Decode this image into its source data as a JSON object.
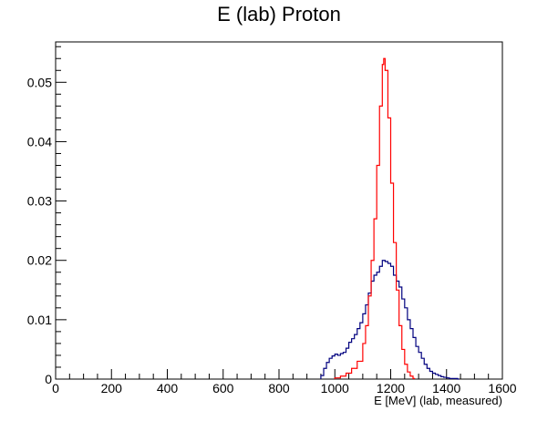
{
  "chart_data": {
    "type": "histogram",
    "title": "E (lab) Proton",
    "xlabel": "E [MeV] (lab, measured)",
    "ylabel": "",
    "xlim": [
      0,
      1600
    ],
    "ylim": [
      0,
      0.0568
    ],
    "xticks": [
      0,
      200,
      400,
      600,
      800,
      1000,
      1200,
      1400,
      1600
    ],
    "yticks": [
      0,
      0.01,
      0.02,
      0.03,
      0.04,
      0.05
    ],
    "ytick_labels": [
      "0",
      "0.01",
      "0.02",
      "0.03",
      "0.04",
      "0.05"
    ],
    "grid": false,
    "legend": "none",
    "series": [
      {
        "color": "#00007f",
        "bin_width": 5,
        "bins": [
          [
            950,
            0.0006
          ],
          [
            960,
            0.0018
          ],
          [
            970,
            0.0028
          ],
          [
            980,
            0.0035
          ],
          [
            990,
            0.0039
          ],
          [
            1000,
            0.0042
          ],
          [
            1010,
            0.004
          ],
          [
            1020,
            0.0043
          ],
          [
            1030,
            0.0045
          ],
          [
            1040,
            0.0052
          ],
          [
            1050,
            0.0062
          ],
          [
            1060,
            0.0068
          ],
          [
            1070,
            0.0075
          ],
          [
            1080,
            0.0085
          ],
          [
            1090,
            0.0095
          ],
          [
            1100,
            0.011
          ],
          [
            1110,
            0.0125
          ],
          [
            1120,
            0.0145
          ],
          [
            1130,
            0.0165
          ],
          [
            1140,
            0.0175
          ],
          [
            1150,
            0.018
          ],
          [
            1160,
            0.019
          ],
          [
            1170,
            0.02
          ],
          [
            1180,
            0.0198
          ],
          [
            1190,
            0.0195
          ],
          [
            1200,
            0.019
          ],
          [
            1210,
            0.0175
          ],
          [
            1220,
            0.0165
          ],
          [
            1230,
            0.0155
          ],
          [
            1240,
            0.0135
          ],
          [
            1250,
            0.012
          ],
          [
            1260,
            0.01
          ],
          [
            1270,
            0.0085
          ],
          [
            1280,
            0.007
          ],
          [
            1290,
            0.0055
          ],
          [
            1300,
            0.0045
          ],
          [
            1310,
            0.0035
          ],
          [
            1320,
            0.0025
          ],
          [
            1330,
            0.0018
          ],
          [
            1340,
            0.0013
          ],
          [
            1350,
            0.001
          ],
          [
            1360,
            0.0008
          ],
          [
            1370,
            0.0006
          ],
          [
            1380,
            0.0004
          ],
          [
            1390,
            0.0003
          ],
          [
            1400,
            0.0002
          ],
          [
            1410,
            0.0001
          ],
          [
            1420,
            0.0001
          ],
          [
            1430,
            0.0001
          ],
          [
            1440,
            0.0
          ]
        ]
      },
      {
        "color": "#ff0000",
        "bin_width": 5,
        "peak": {
          "x": 1175,
          "y": 0.054
        },
        "bins": [
          [
            1000,
            0.0002
          ],
          [
            1020,
            0.0005
          ],
          [
            1040,
            0.001
          ],
          [
            1060,
            0.0018
          ],
          [
            1080,
            0.003
          ],
          [
            1100,
            0.006
          ],
          [
            1110,
            0.009
          ],
          [
            1120,
            0.014
          ],
          [
            1130,
            0.02
          ],
          [
            1140,
            0.027
          ],
          [
            1150,
            0.036
          ],
          [
            1160,
            0.046
          ],
          [
            1170,
            0.053
          ],
          [
            1175,
            0.054
          ],
          [
            1180,
            0.052
          ],
          [
            1190,
            0.044
          ],
          [
            1200,
            0.033
          ],
          [
            1210,
            0.023
          ],
          [
            1220,
            0.015
          ],
          [
            1230,
            0.009
          ],
          [
            1240,
            0.005
          ],
          [
            1250,
            0.0025
          ],
          [
            1260,
            0.0012
          ],
          [
            1270,
            0.0005
          ],
          [
            1280,
            0.0001
          ]
        ]
      }
    ]
  }
}
